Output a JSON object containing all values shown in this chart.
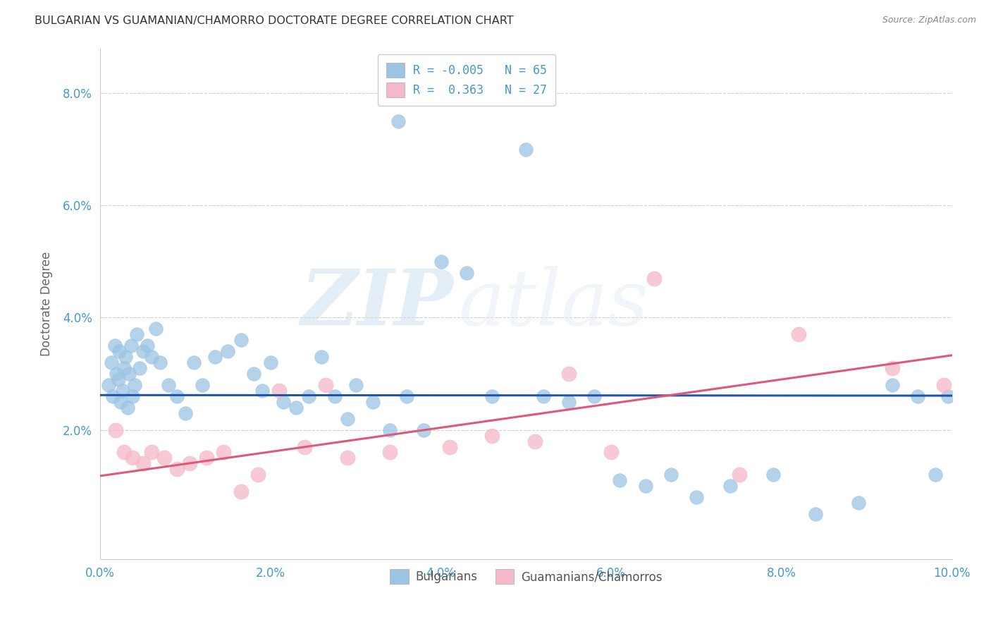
{
  "title": "BULGARIAN VS GUAMANIAN/CHAMORRO DOCTORATE DEGREE CORRELATION CHART",
  "source": "Source: ZipAtlas.com",
  "ylabel": "Doctorate Degree",
  "xmin": 0.0,
  "xmax": 10.0,
  "ymin": -0.3,
  "ymax": 8.8,
  "xticks": [
    0.0,
    2.0,
    4.0,
    6.0,
    8.0,
    10.0
  ],
  "yticks": [
    2.0,
    4.0,
    6.0,
    8.0
  ],
  "xtick_labels": [
    "0.0%",
    "2.0%",
    "4.0%",
    "6.0%",
    "8.0%",
    "10.0%"
  ],
  "ytick_labels": [
    "2.0%",
    "4.0%",
    "6.0%",
    "8.0%"
  ],
  "legend_line1": "R = -0.005   N = 65",
  "legend_line2": "R =  0.363   N = 27",
  "legend_label1": "Bulgarians",
  "legend_label2": "Guamanians/Chamorros",
  "blue_color": "#9bc4e2",
  "pink_color": "#f5b8c8",
  "line_blue": "#2255aa",
  "line_pink": "#e05878",
  "axis_color": "#4499cc",
  "watermark_zip": "ZIP",
  "watermark_atlas": "atlas",
  "blue_x": [
    0.1,
    0.13,
    0.15,
    0.17,
    0.19,
    0.21,
    0.22,
    0.24,
    0.26,
    0.28,
    0.3,
    0.32,
    0.34,
    0.36,
    0.38,
    0.4,
    0.43,
    0.46,
    0.5,
    0.55,
    0.6,
    0.65,
    0.7,
    0.8,
    0.9,
    1.0,
    1.1,
    1.2,
    1.35,
    1.5,
    1.65,
    1.8,
    1.9,
    2.0,
    2.15,
    2.3,
    2.45,
    2.6,
    2.75,
    2.9,
    3.0,
    3.2,
    3.4,
    3.5,
    3.6,
    3.8,
    4.0,
    4.3,
    4.6,
    5.0,
    5.2,
    5.5,
    5.8,
    6.1,
    6.4,
    6.7,
    7.0,
    7.4,
    7.9,
    8.4,
    8.9,
    9.3,
    9.6,
    9.8,
    9.95
  ],
  "blue_y": [
    2.8,
    3.2,
    2.6,
    3.5,
    3.0,
    2.9,
    3.4,
    2.5,
    2.7,
    3.1,
    3.3,
    2.4,
    3.0,
    3.5,
    2.6,
    2.8,
    3.7,
    3.1,
    3.4,
    3.5,
    3.3,
    3.8,
    3.2,
    2.8,
    2.6,
    2.3,
    3.2,
    2.8,
    3.3,
    3.4,
    3.6,
    3.0,
    2.7,
    3.2,
    2.5,
    2.4,
    2.6,
    3.3,
    2.6,
    2.2,
    2.8,
    2.5,
    2.0,
    7.5,
    2.6,
    2.0,
    5.0,
    4.8,
    2.6,
    7.0,
    2.6,
    2.5,
    2.6,
    1.1,
    1.0,
    1.2,
    0.8,
    1.0,
    1.2,
    0.5,
    0.7,
    2.8,
    2.6,
    1.2,
    2.6
  ],
  "pink_x": [
    0.18,
    0.28,
    0.38,
    0.5,
    0.6,
    0.75,
    0.9,
    1.05,
    1.25,
    1.45,
    1.65,
    1.85,
    2.1,
    2.4,
    2.65,
    2.9,
    3.4,
    4.1,
    4.6,
    5.1,
    5.5,
    6.0,
    6.5,
    7.5,
    8.2,
    9.3,
    9.9
  ],
  "pink_y": [
    2.0,
    1.6,
    1.5,
    1.4,
    1.6,
    1.5,
    1.3,
    1.4,
    1.5,
    1.6,
    0.9,
    1.2,
    2.7,
    1.7,
    2.8,
    1.5,
    1.6,
    1.7,
    1.9,
    1.8,
    3.0,
    1.6,
    4.7,
    1.2,
    3.7,
    3.1,
    2.8
  ],
  "blue_intercept": 2.62,
  "blue_slope": -0.001,
  "pink_intercept": 1.18,
  "pink_slope": 0.215
}
